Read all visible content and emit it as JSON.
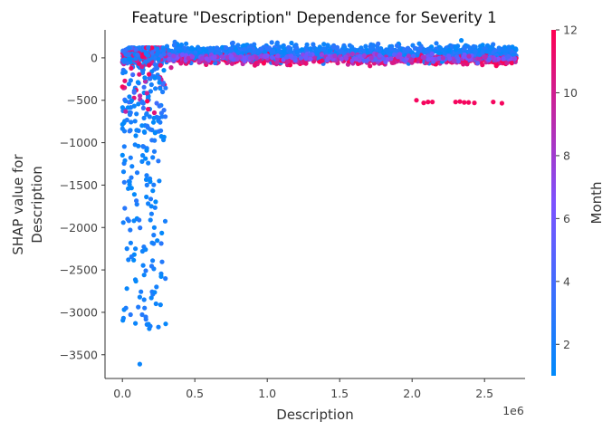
{
  "chart_data": {
    "type": "scatter",
    "title": "Feature \"Description\" Dependence for Severity 1",
    "xlabel": "Description",
    "ylabel_lines": [
      "SHAP value for",
      "Description"
    ],
    "x_multiplier_label": "1e6",
    "xlim": [
      -0.12,
      2.78
    ],
    "ylim": [
      -3780,
      330
    ],
    "x_ticks": [
      0.0,
      0.5,
      1.0,
      1.5,
      2.0,
      2.5
    ],
    "x_tick_labels": [
      "0.0",
      "0.5",
      "1.0",
      "1.5",
      "2.0",
      "2.5"
    ],
    "y_ticks": [
      0,
      -500,
      -1000,
      -1500,
      -2000,
      -2500,
      -3000,
      -3500
    ],
    "y_tick_labels": [
      "0",
      "−500",
      "−1000",
      "−1500",
      "−2000",
      "−2500",
      "−3000",
      "−3500"
    ],
    "colorbar": {
      "label": "Month",
      "min": 1,
      "max": 12,
      "ticks": [
        2,
        4,
        6,
        8,
        10,
        12
      ],
      "tick_labels": [
        "2",
        "4",
        "6",
        "8",
        "10",
        "12"
      ],
      "color_low": "#008afb",
      "color_mid": "#7c52ff",
      "color_high": "#ff0051"
    },
    "points_note_values": {
      "outliers_high_month": [
        [
          2.03,
          -500
        ],
        [
          2.08,
          -530
        ],
        [
          2.11,
          -520
        ],
        [
          2.14,
          -520
        ],
        [
          2.3,
          -520
        ],
        [
          2.33,
          -515
        ],
        [
          2.36,
          -525
        ],
        [
          2.39,
          -525
        ],
        [
          2.43,
          -530
        ],
        [
          2.56,
          -520
        ],
        [
          2.62,
          -535
        ],
        [
          0.0,
          -340
        ]
      ]
    }
  }
}
